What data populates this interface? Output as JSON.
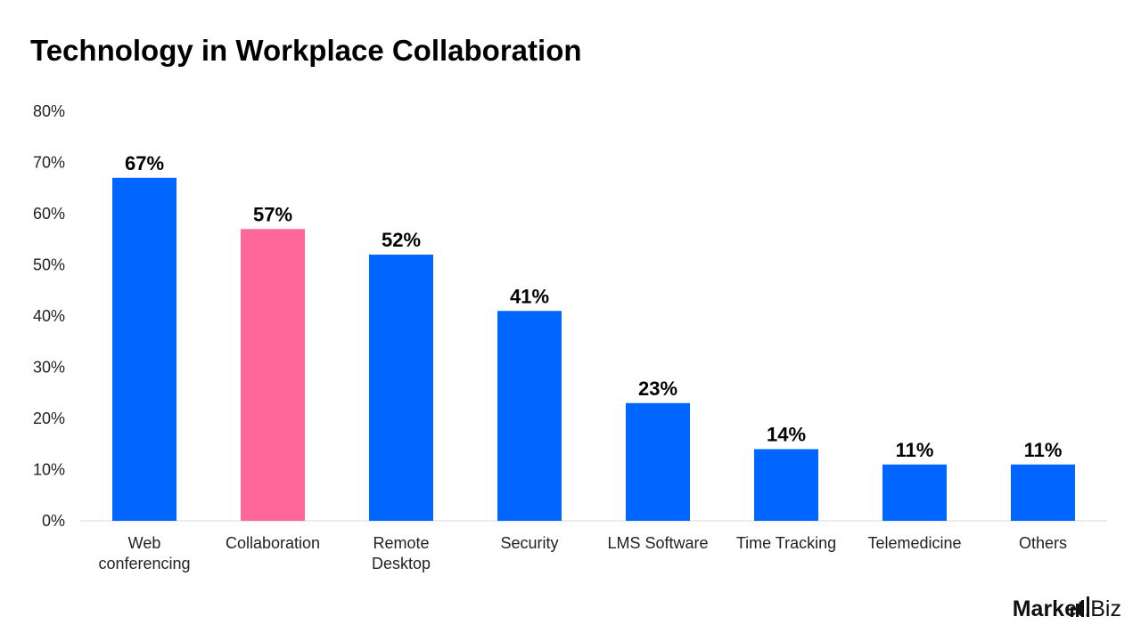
{
  "chart_data": {
    "type": "bar",
    "title": "Technology in Workplace Collaboration",
    "categories": [
      "Web conferencing",
      "Collaboration",
      "Remote Desktop",
      "Security",
      "LMS Software",
      "Time Tracking",
      "Telemedicine",
      "Others"
    ],
    "category_lines": [
      [
        "Web",
        "conferencing"
      ],
      [
        "Collaboration"
      ],
      [
        "Remote",
        "Desktop"
      ],
      [
        "Security"
      ],
      [
        "LMS Software"
      ],
      [
        "Time Tracking"
      ],
      [
        "Telemedicine"
      ],
      [
        "Others"
      ]
    ],
    "values": [
      67,
      57,
      52,
      41,
      23,
      14,
      11,
      11
    ],
    "data_labels": [
      "67%",
      "57%",
      "52%",
      "41%",
      "23%",
      "14%",
      "11%",
      "11%"
    ],
    "colors": [
      "#0066ff",
      "#ff6699",
      "#0066ff",
      "#0066ff",
      "#0066ff",
      "#0066ff",
      "#0066ff",
      "#0066ff"
    ],
    "yticks": [
      0,
      10,
      20,
      30,
      40,
      50,
      60,
      70,
      80
    ],
    "ytick_labels": [
      "0%",
      "10%",
      "20%",
      "30%",
      "40%",
      "50%",
      "60%",
      "70%",
      "80%"
    ],
    "ylim": [
      0,
      80
    ],
    "xlabel": "",
    "ylabel": "",
    "grid": false,
    "legend": "none"
  },
  "logo": {
    "text_bold": "Market",
    "text_regular": ".Biz"
  }
}
